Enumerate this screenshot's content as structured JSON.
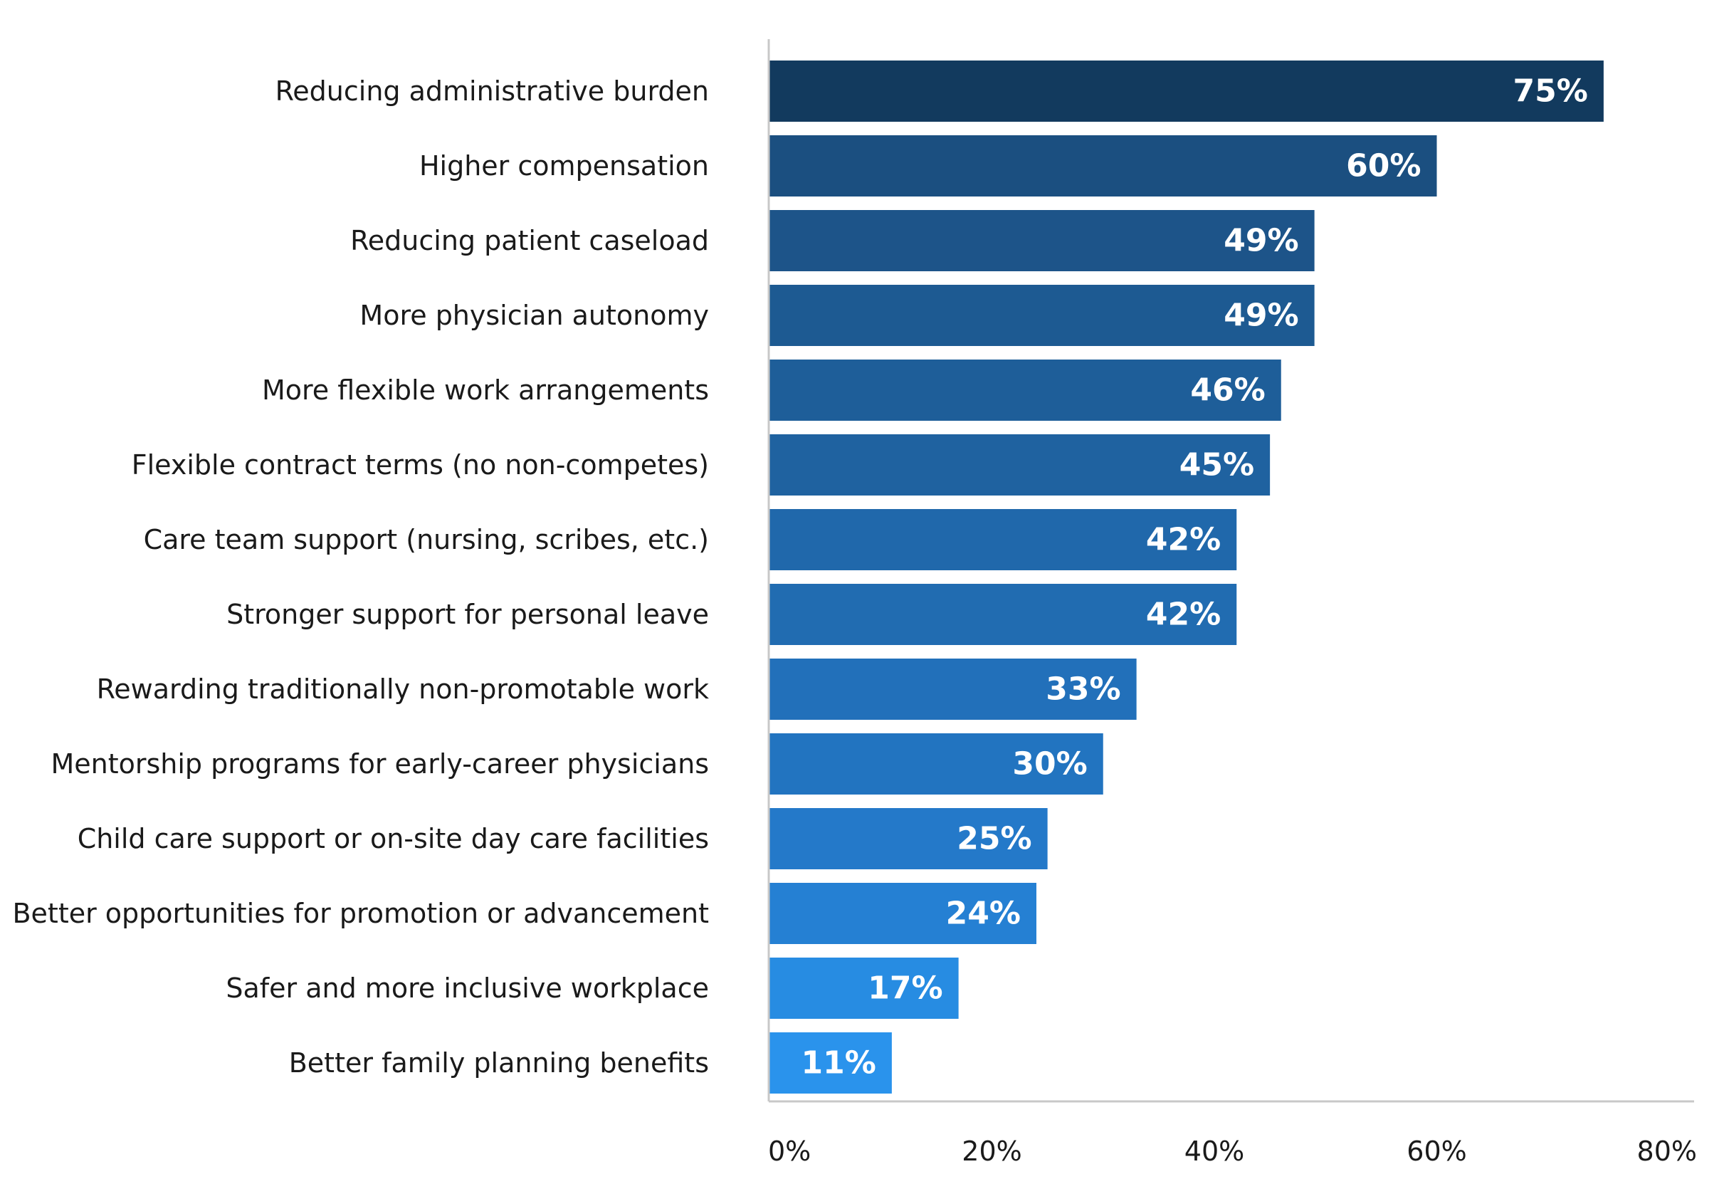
{
  "chart_data": {
    "type": "bar",
    "orientation": "horizontal",
    "categories": [
      "Reducing administrative burden",
      "Higher compensation",
      "Reducing patient caseload",
      "More physician autonomy",
      "More flexible work arrangements",
      "Flexible contract terms (no non-competes)",
      "Care team support (nursing, scribes, etc.)",
      "Stronger support for personal leave",
      "Rewarding traditionally non-promotable work",
      "Mentorship programs for early-career physicians",
      "Child care support or on-site day care facilities",
      "Better opportunities for promotion or advancement",
      "Safer and more inclusive workplace",
      "Better family planning benefits"
    ],
    "values": [
      75,
      60,
      49,
      49,
      46,
      45,
      42,
      42,
      33,
      30,
      25,
      24,
      17,
      11
    ],
    "value_labels": [
      "75%",
      "60%",
      "49%",
      "49%",
      "46%",
      "45%",
      "42%",
      "42%",
      "33%",
      "30%",
      "25%",
      "24%",
      "17%",
      "11%"
    ],
    "title": "",
    "xlabel": "",
    "ylabel": "",
    "xlim": [
      0,
      80
    ],
    "xticks": [
      0,
      20,
      40,
      60,
      80
    ],
    "xtick_labels": [
      "0%",
      "20%",
      "40%",
      "60%",
      "80%"
    ],
    "grid": false,
    "legend": "none",
    "colors": [
      "#123a5e",
      "#1b4f80",
      "#1d5489",
      "#1d5a92",
      "#1e5e99",
      "#1f62a0",
      "#2068ab",
      "#216cb1",
      "#2270ba",
      "#2274c0",
      "#2479c9",
      "#2580d3",
      "#278ce2",
      "#2a93ec"
    ]
  }
}
